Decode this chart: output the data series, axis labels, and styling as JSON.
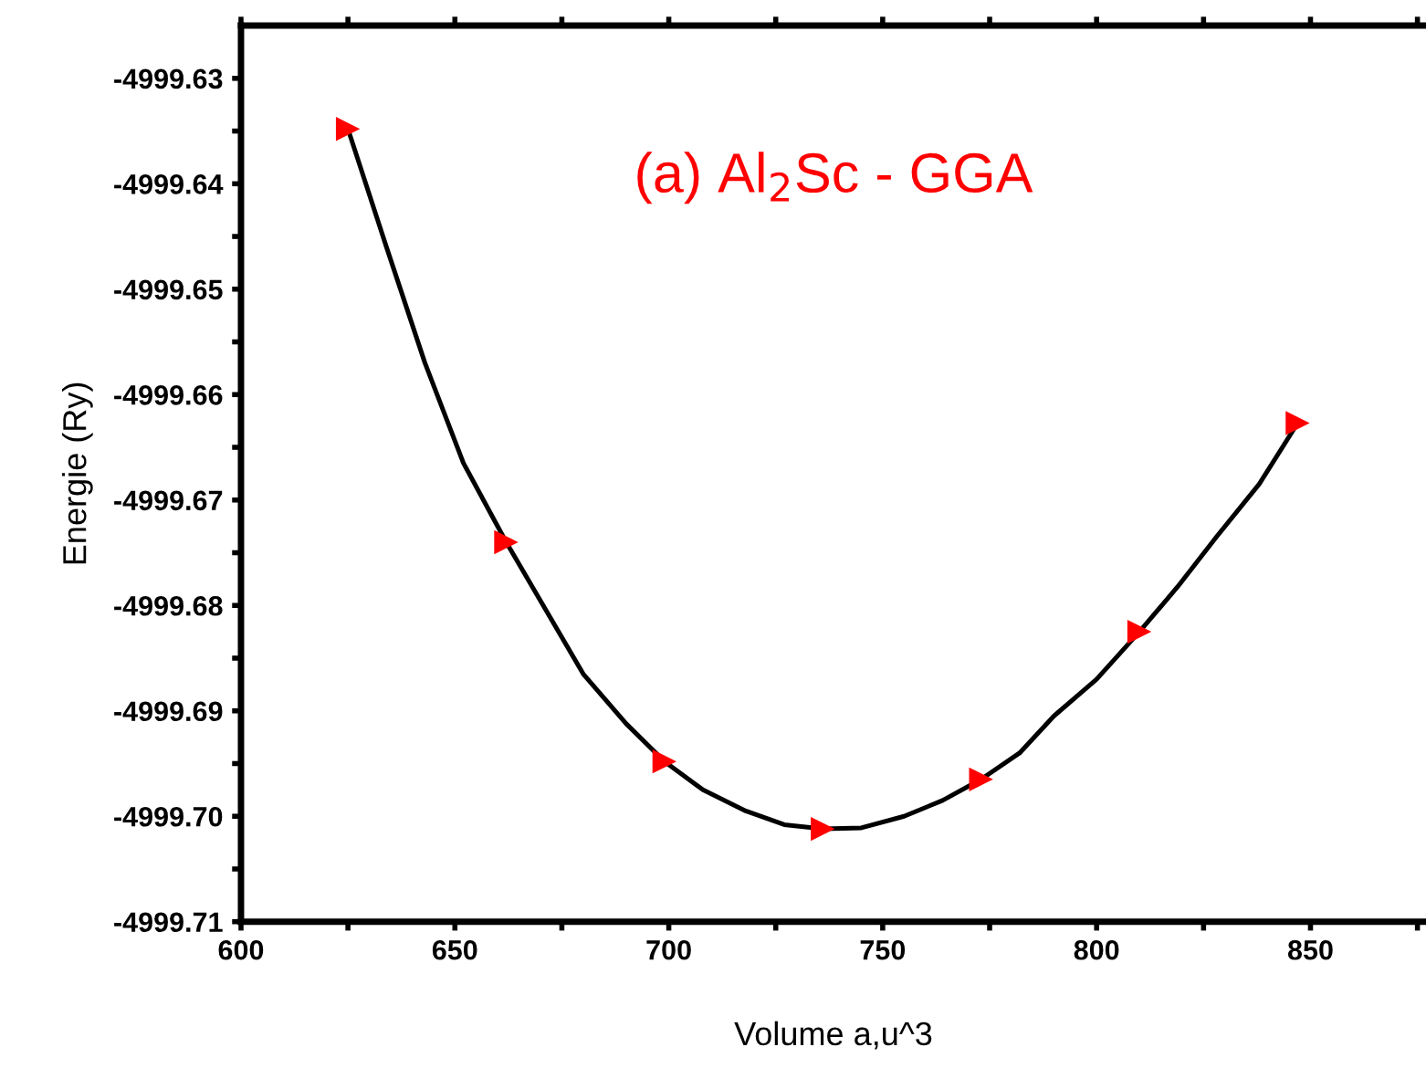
{
  "chart_data": {
    "type": "scatter",
    "xlabel": "Volume a,u^3",
    "ylabel": "Energie (Ry)",
    "annotations": [
      "(a) Al$_{2}$Sc - GGA"
    ],
    "series": [
      {
        "type": "line",
        "color": "#000000",
        "marker": "none",
        "x": [
          625,
          634,
          643,
          652,
          662,
          680,
          690,
          699,
          708,
          718,
          727,
          736,
          745,
          755,
          764,
          773,
          782,
          790,
          800,
          810,
          819,
          828,
          838,
          847
        ],
        "values": [
          -4999.6348,
          -4999.646,
          -4999.657,
          -4999.6665,
          -4999.674,
          -4999.6865,
          -4999.6912,
          -4999.6948,
          -4999.6975,
          -4999.6995,
          -4999.7008,
          -4999.7012,
          -4999.7011,
          -4999.7,
          -4999.6985,
          -4999.6965,
          -4999.694,
          -4999.6905,
          -4999.687,
          -4999.6825,
          -4999.6782,
          -4999.6735,
          -4999.6685,
          -4999.6627
        ]
      },
      {
        "color": "#ff0000",
        "marker": "triangle",
        "x": [
          625,
          662,
          699,
          736,
          773,
          810,
          847
        ],
        "values": [
          -4999.6348,
          -4999.674,
          -4999.6948,
          -4999.7012,
          -4999.6965,
          -4999.6825,
          -4999.6627
        ]
      }
    ],
    "xlim": [
      600,
      877
    ],
    "ylim": [
      -4999.71,
      -4999.625
    ],
    "xticks": [
      600,
      {
        "value": 625,
        "label": null
      },
      650,
      {
        "value": 675,
        "label": null
      },
      700,
      {
        "value": 725,
        "label": null
      },
      750,
      {
        "value": 775,
        "label": null
      },
      800,
      {
        "value": 825,
        "label": null
      },
      850,
      {
        "value": 875,
        "label": null
      }
    ],
    "yticks": [
      -4999.71,
      {
        "value": -4999.705,
        "label": null
      },
      "-4999.70",
      {
        "value": -4999.695,
        "label": null
      },
      -4999.69,
      {
        "value": -4999.685,
        "label": null
      },
      -4999.68,
      {
        "value": -4999.675,
        "label": null
      },
      -4999.67,
      {
        "value": -4999.665,
        "label": null
      },
      -4999.66,
      {
        "value": -4999.655,
        "label": null
      },
      -4999.65,
      {
        "value": -4999.645,
        "label": null
      },
      -4999.64,
      {
        "value": -4999.635,
        "label": null
      },
      -4999.63
    ],
    "grid": false
  }
}
